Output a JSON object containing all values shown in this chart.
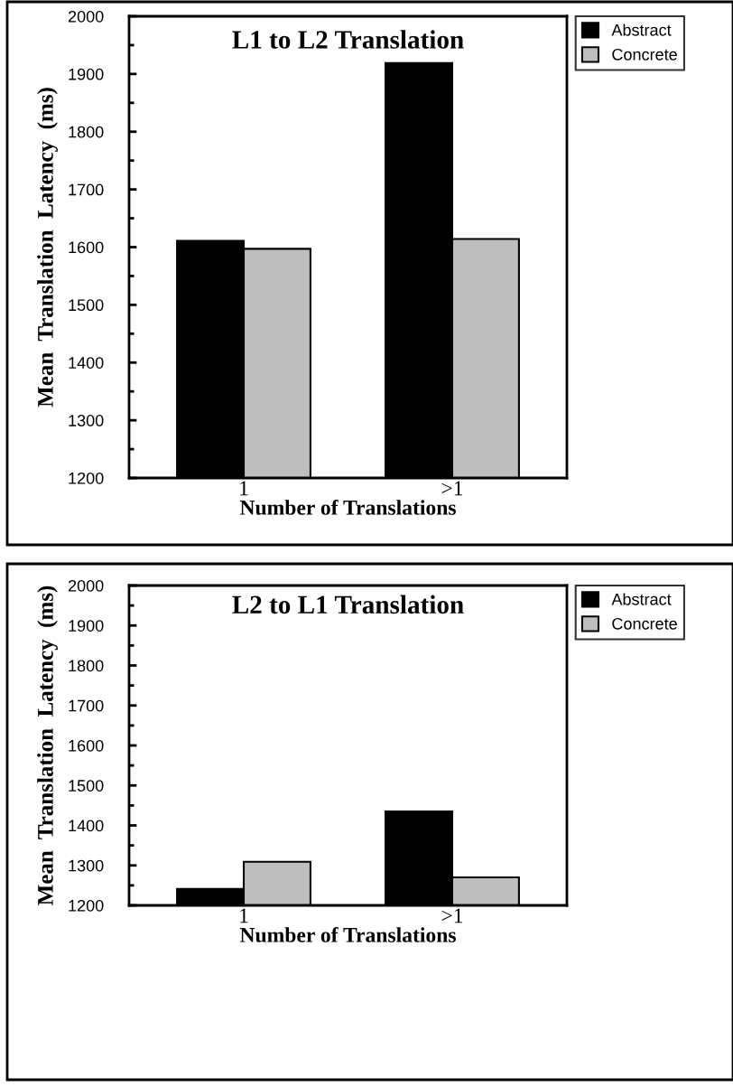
{
  "chart_data": [
    {
      "type": "bar",
      "title": "L1 to L2 Translation",
      "xlabel": "Number of Translations",
      "ylabel": "Mean  Translation  Latency  (ms)",
      "categories": [
        "1",
        ">1"
      ],
      "series": [
        {
          "name": "Abstract",
          "color": "#000000",
          "values": [
            1611,
            1919
          ]
        },
        {
          "name": "Concrete",
          "color": "#bebebe",
          "values": [
            1597,
            1614
          ]
        }
      ],
      "ylim": [
        1200,
        2000
      ],
      "yticks": [
        1200,
        1300,
        1400,
        1500,
        1600,
        1700,
        1800,
        1900,
        2000
      ],
      "grid": false,
      "legend": "top right"
    },
    {
      "type": "bar",
      "title": "L2 to L1 Translation",
      "xlabel": "Number of Translations",
      "ylabel": "Mean  Translation  Latency  (ms)",
      "categories": [
        "1",
        ">1"
      ],
      "series": [
        {
          "name": "Abstract",
          "color": "#000000",
          "values": [
            1241,
            1435
          ]
        },
        {
          "name": "Concrete",
          "color": "#bebebe",
          "values": [
            1309,
            1270
          ]
        }
      ],
      "ylim": [
        1200,
        2000
      ],
      "yticks": [
        1200,
        1300,
        1400,
        1500,
        1600,
        1700,
        1800,
        1900,
        2000
      ],
      "grid": false,
      "legend": "top right"
    }
  ]
}
